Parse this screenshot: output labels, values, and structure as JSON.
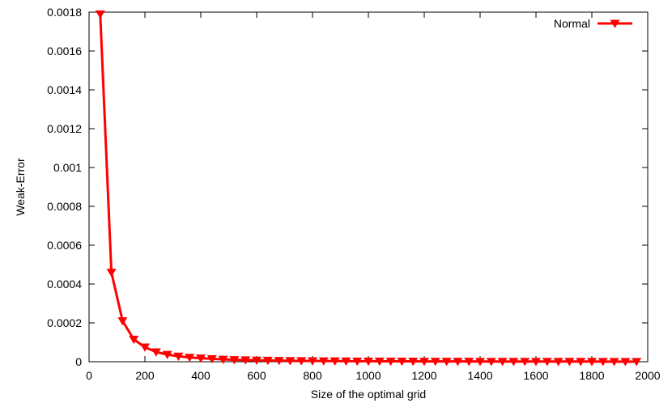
{
  "chart_data": {
    "type": "line",
    "xlabel": "Size of the optimal grid",
    "ylabel": "Weak-Error",
    "xlim": [
      0,
      2000
    ],
    "ylim": [
      0,
      0.0018
    ],
    "xticks": [
      0,
      200,
      400,
      600,
      800,
      1000,
      1200,
      1400,
      1600,
      1800,
      2000
    ],
    "yticks": [
      "0",
      "0.0002",
      "0.0004",
      "0.0006",
      "0.0008",
      "0.001",
      "0.0012",
      "0.0014",
      "0.0016",
      "0.0018"
    ],
    "grid": false,
    "legend_position": "top-right",
    "series": [
      {
        "name": "Normal",
        "color": "#ff0000",
        "marker": "triangle-down",
        "x": [
          40,
          80,
          120,
          160,
          200,
          240,
          280,
          320,
          360,
          400,
          440,
          480,
          520,
          560,
          600,
          640,
          680,
          720,
          760,
          800,
          840,
          880,
          920,
          960,
          1000,
          1040,
          1080,
          1120,
          1160,
          1200,
          1240,
          1280,
          1320,
          1360,
          1400,
          1440,
          1480,
          1520,
          1560,
          1600,
          1640,
          1680,
          1720,
          1760,
          1800,
          1840,
          1880,
          1920,
          1960
        ],
        "y": [
          0.00179,
          0.00046,
          0.00021,
          0.000115,
          7.5e-05,
          5e-05,
          3.7e-05,
          2.8e-05,
          2.2e-05,
          1.8e-05,
          1.5e-05,
          1.2e-05,
          1e-05,
          8.7e-06,
          7.5e-06,
          6.6e-06,
          5.8e-06,
          5.1e-06,
          4.6e-06,
          4.1e-06,
          3.7e-06,
          3.4e-06,
          3.1e-06,
          2.8e-06,
          2.6e-06,
          2.4e-06,
          2.2e-06,
          2e-06,
          1.9e-06,
          1.8e-06,
          1.7e-06,
          1.6e-06,
          1.5e-06,
          1.4e-06,
          1.3e-06,
          1.2e-06,
          1.2e-06,
          1.1e-06,
          1.1e-06,
          1e-06,
          1e-06,
          9.5e-07,
          9e-07,
          8.5e-07,
          8e-07,
          7.6e-07,
          7.2e-07,
          6.8e-07,
          6.5e-07
        ]
      }
    ]
  }
}
